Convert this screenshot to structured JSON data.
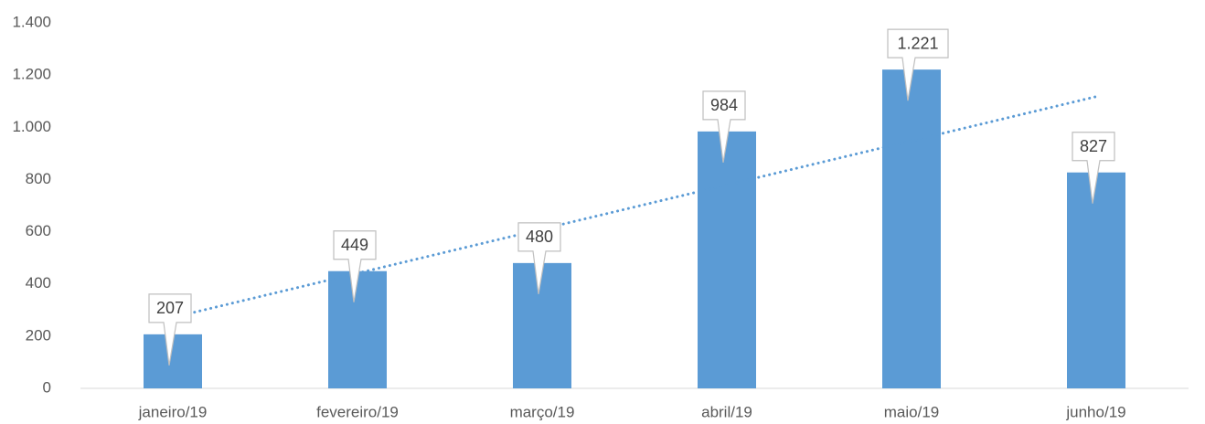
{
  "chart_data": {
    "type": "bar",
    "categories": [
      "janeiro/19",
      "fevereiro/19",
      "março/19",
      "abril/19",
      "maio/19",
      "junho/19"
    ],
    "values": [
      207,
      449,
      480,
      984,
      1221,
      827
    ],
    "value_labels": [
      "207",
      "449",
      "480",
      "984",
      "1.221",
      "827"
    ],
    "color": "#5b9bd5",
    "ylim": [
      0,
      1400
    ],
    "yticks": [
      0,
      200,
      400,
      600,
      800,
      {
        "value": 1000,
        "label": "1.000"
      },
      {
        "value": 1200,
        "label": "1.200"
      },
      {
        "value": 1400,
        "label": "1.400"
      }
    ],
    "grid": false,
    "trendline": "linear",
    "trendline_color": "#5b9bd5"
  }
}
